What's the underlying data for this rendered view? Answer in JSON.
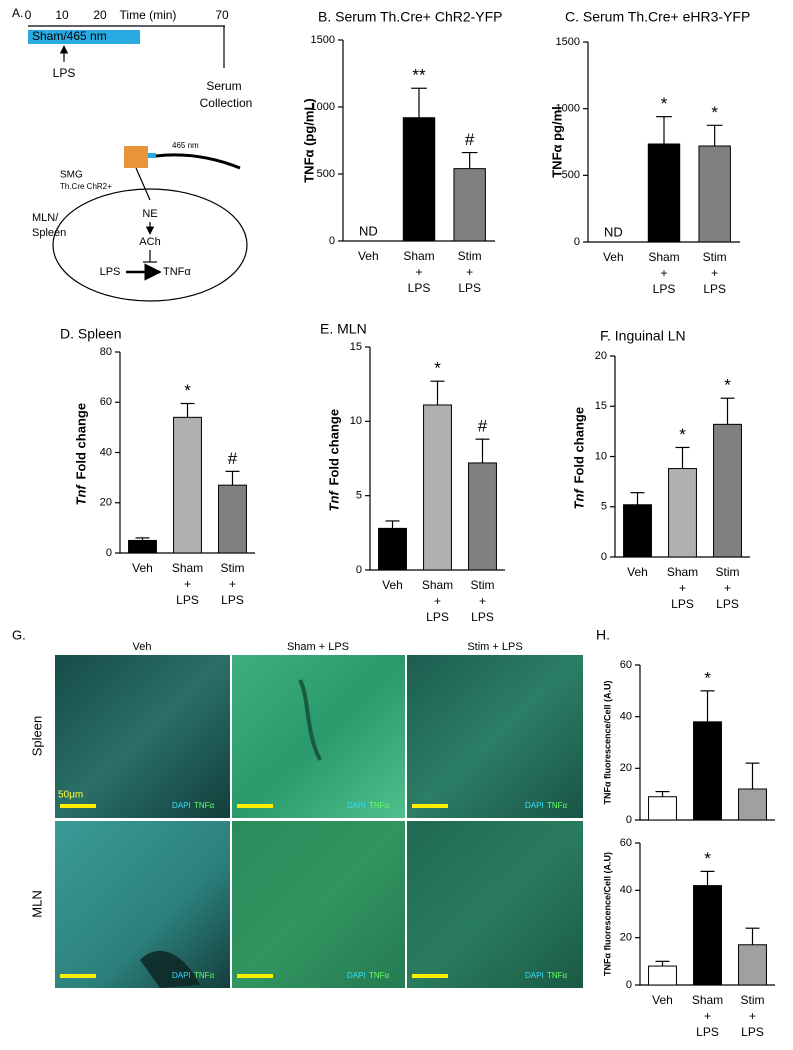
{
  "chart_data": [
    {
      "type": "bar",
      "title": "B. Serum Th.Cre+ ChR2-YFP",
      "ylabel": [
        "TNFα (pg/mL)"
      ],
      "categories": [
        [
          "Veh"
        ],
        [
          "Sham",
          "+",
          "LPS"
        ],
        [
          "Stim",
          "+",
          "LPS"
        ]
      ],
      "values": [
        null,
        920,
        540
      ],
      "errors": [
        null,
        220,
        120
      ],
      "colors": [
        "#000000",
        "#000000",
        "#808080"
      ],
      "markers": [
        "ND",
        "**",
        "#"
      ],
      "ylim": [
        0,
        1500
      ],
      "yticks": [
        0,
        500,
        1000,
        1500
      ]
    },
    {
      "type": "bar",
      "title": "C. Serum Th.Cre+ eHR3-YFP",
      "ylabel": [
        "TNFα pg/ml"
      ],
      "categories": [
        [
          "Veh"
        ],
        [
          "Sham",
          "+",
          "LPS"
        ],
        [
          "Stim",
          "+",
          "LPS"
        ]
      ],
      "values": [
        null,
        735,
        720
      ],
      "errors": [
        null,
        205,
        155
      ],
      "colors": [
        "#000000",
        "#000000",
        "#808080"
      ],
      "markers": [
        "ND",
        "*",
        "*"
      ],
      "ylim": [
        0,
        1500
      ],
      "yticks": [
        0,
        500,
        1000,
        1500
      ]
    },
    {
      "type": "bar",
      "title": "D. Spleen",
      "ylabel": [
        "Tnf",
        "Fold change"
      ],
      "categories": [
        [
          "Veh"
        ],
        [
          "Sham",
          "+",
          "LPS"
        ],
        [
          "Stim",
          "+",
          "LPS"
        ]
      ],
      "values": [
        5,
        54,
        27
      ],
      "errors": [
        1,
        5.5,
        5.5
      ],
      "colors": [
        "#000000",
        "#b0b0b0",
        "#808080"
      ],
      "markers": [
        null,
        "*",
        "#"
      ],
      "ylim": [
        0,
        80
      ],
      "yticks": [
        0,
        20,
        40,
        60,
        80
      ]
    },
    {
      "type": "bar",
      "title": "E. MLN",
      "ylabel": [
        "Tnf",
        "Fold change"
      ],
      "categories": [
        [
          "Veh"
        ],
        [
          "Sham",
          "+",
          "LPS"
        ],
        [
          "Stim",
          "+",
          "LPS"
        ]
      ],
      "values": [
        2.8,
        11.1,
        7.2
      ],
      "errors": [
        0.5,
        1.6,
        1.6
      ],
      "colors": [
        "#000000",
        "#b0b0b0",
        "#808080"
      ],
      "markers": [
        null,
        "*",
        "#"
      ],
      "ylim": [
        0,
        15
      ],
      "yticks": [
        0,
        5,
        10,
        15
      ]
    },
    {
      "type": "bar",
      "title": "F. Inguinal LN",
      "ylabel": [
        "Tnf",
        "Fold change"
      ],
      "categories": [
        [
          "Veh"
        ],
        [
          "Sham",
          "+",
          "LPS"
        ],
        [
          "Stim",
          "+",
          "LPS"
        ]
      ],
      "values": [
        5.2,
        8.8,
        13.2
      ],
      "errors": [
        1.2,
        2.1,
        2.6
      ],
      "colors": [
        "#000000",
        "#b0b0b0",
        "#808080"
      ],
      "markers": [
        null,
        "*",
        "*"
      ],
      "ylim": [
        0,
        20
      ],
      "yticks": [
        0,
        5,
        10,
        15,
        20
      ]
    },
    {
      "type": "bar",
      "title": "H.",
      "ylabel": [
        "TNFα fluorescence/Cell (A.U)"
      ],
      "values": [
        9,
        38,
        12
      ],
      "errors": [
        2,
        12,
        10
      ],
      "colors": [
        "#ffffff",
        "#000000",
        "#a0a0a0"
      ],
      "markers": [
        null,
        "*",
        null
      ],
      "ylim": [
        0,
        60
      ],
      "yticks": [
        0,
        20,
        40,
        60
      ]
    },
    {
      "type": "bar",
      "ylabel": [
        "TNFα fluorescence/Cell (A.U)"
      ],
      "categories": [
        [
          "Veh"
        ],
        [
          "Sham",
          "+",
          "LPS"
        ],
        [
          "Stim",
          "+",
          "LPS"
        ]
      ],
      "values": [
        8,
        42,
        17
      ],
      "errors": [
        2,
        6,
        7
      ],
      "colors": [
        "#ffffff",
        "#000000",
        "#a0a0a0"
      ],
      "markers": [
        null,
        "*",
        null
      ],
      "ylim": [
        0,
        60
      ],
      "yticks": [
        0,
        20,
        40,
        60
      ]
    }
  ],
  "diagram": {
    "label": "A.",
    "time_label": "Time (min)",
    "time_ticks": [
      0,
      10,
      20,
      70
    ],
    "stim_label": "Sham/465 nm",
    "lps": "LPS",
    "collection": [
      "Serum",
      "Collection"
    ],
    "light": "465 nm",
    "ganglion": [
      "SMG",
      "Th.Cre ChR2+"
    ],
    "organ": [
      "MLN/",
      "Spleen"
    ],
    "ne": "NE",
    "ach": "ACh",
    "lps_inner": "LPS",
    "tnf": "TNFα"
  },
  "micrographs": {
    "label": "G.",
    "columns": [
      "Veh",
      "Sham + LPS",
      "Stim + LPS"
    ],
    "rows": [
      "Spleen",
      "MLN"
    ],
    "scale_bar": "50μm",
    "stains": [
      "DAPI",
      "TNFα"
    ]
  }
}
